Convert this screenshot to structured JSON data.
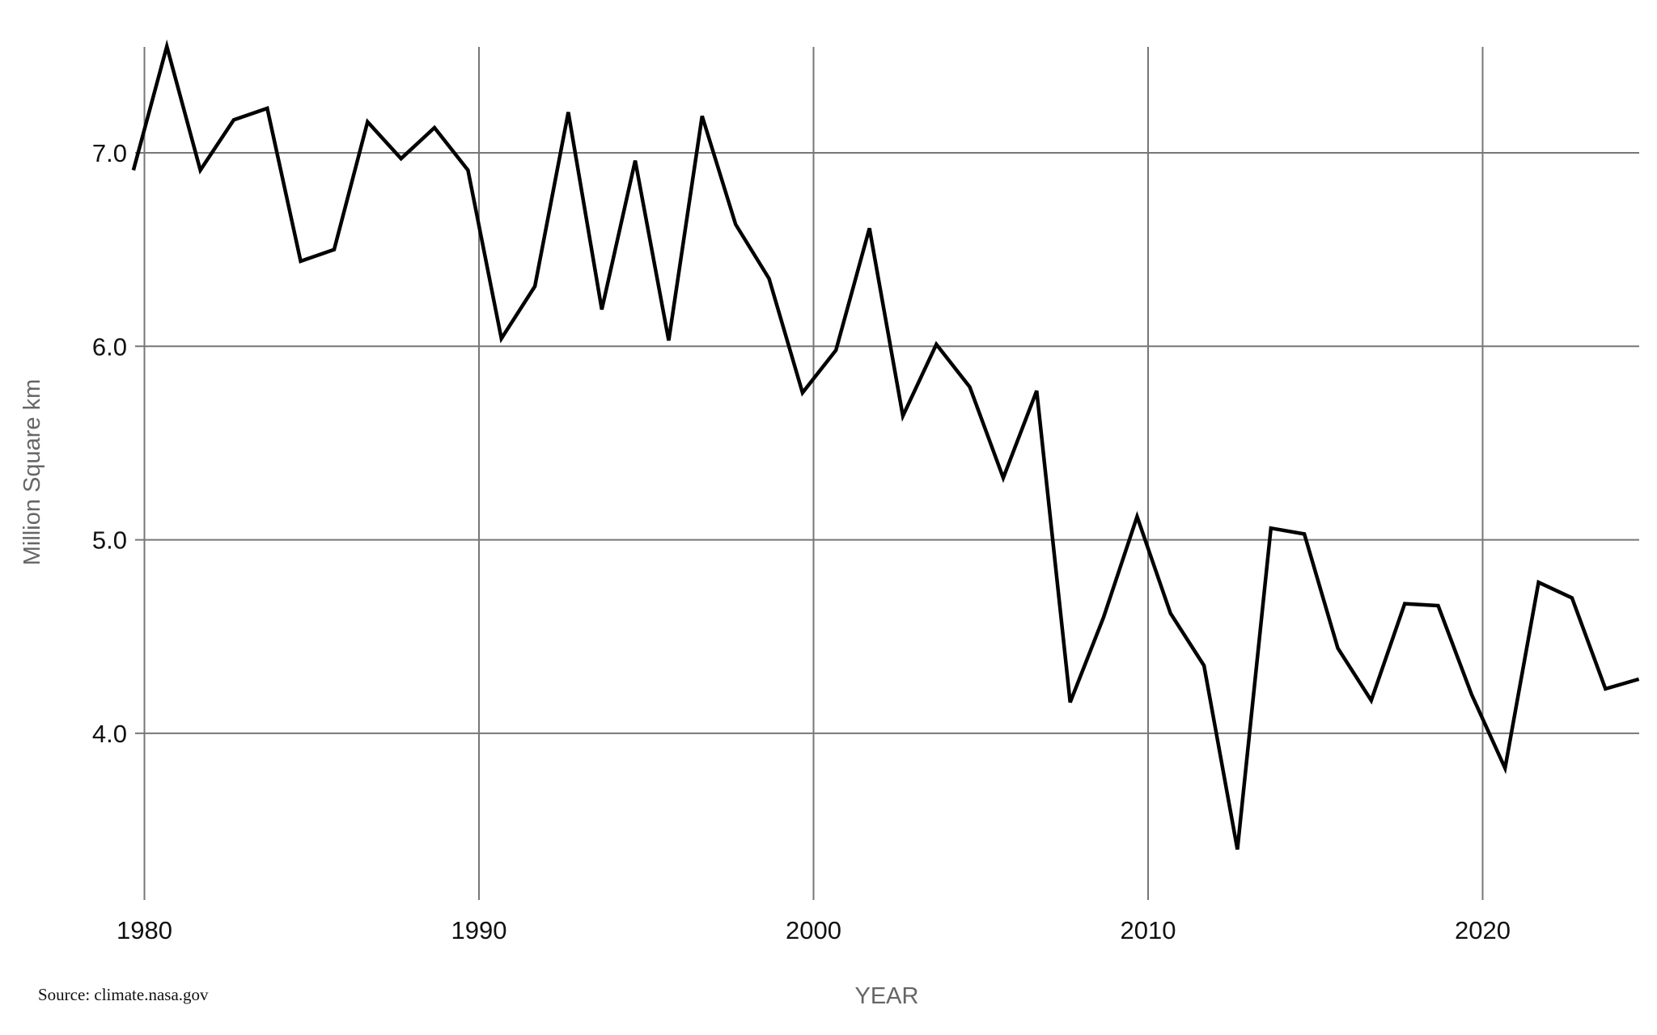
{
  "chart_data": {
    "type": "line",
    "title": "",
    "xlabel": "YEAR",
    "ylabel": "Million Square km",
    "source": "Source: climate.nasa.gov",
    "xlim": [
      1979.7,
      2024.7
    ],
    "ylim": [
      3.2,
      7.55
    ],
    "x_ticks": [
      1980,
      1990,
      2000,
      2010,
      2020
    ],
    "x_tick_labels": [
      "1980",
      "1990",
      "2000",
      "2010",
      "2020"
    ],
    "y_ticks": [
      4.0,
      5.0,
      6.0,
      7.0
    ],
    "y_tick_labels": [
      "4.0",
      "5.0",
      "6.0",
      "7.0"
    ],
    "grid": true,
    "line_color": "#000000",
    "grid_color": "#777777",
    "series": [
      {
        "x": [
          1979,
          1980,
          1981,
          1982,
          1983,
          1984,
          1985,
          1986,
          1987,
          1988,
          1989,
          1990,
          1991,
          1992,
          1993,
          1994,
          1995,
          1996,
          1997,
          1998,
          1999,
          2000,
          2001,
          2002,
          2003,
          2004,
          2005,
          2006,
          2007,
          2008,
          2009,
          2010,
          2011,
          2012,
          2013,
          2014,
          2015,
          2016,
          2017,
          2018,
          2019,
          2020,
          2021,
          2022,
          2023,
          2024
        ],
        "values": [
          6.91,
          7.55,
          6.91,
          7.17,
          7.23,
          6.44,
          6.5,
          7.16,
          6.97,
          7.13,
          6.91,
          6.04,
          6.31,
          7.21,
          6.19,
          6.96,
          6.03,
          7.19,
          6.63,
          6.35,
          5.76,
          5.98,
          6.61,
          5.64,
          6.01,
          5.79,
          5.32,
          5.77,
          4.16,
          4.6,
          5.12,
          4.62,
          4.35,
          3.4,
          5.06,
          5.03,
          4.44,
          4.17,
          4.67,
          4.66,
          4.2,
          3.82,
          4.78,
          4.7,
          4.23,
          4.28
        ]
      }
    ]
  }
}
